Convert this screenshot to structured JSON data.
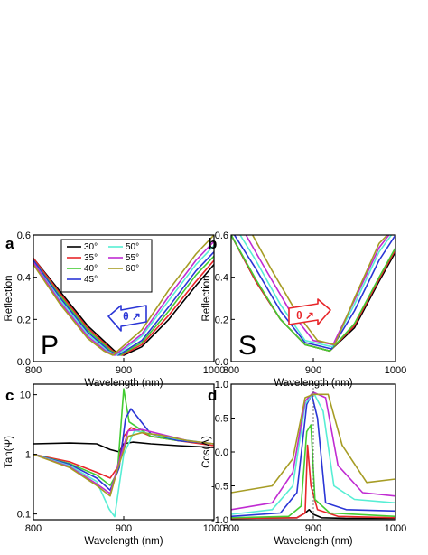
{
  "colors": {
    "30": "#000000",
    "35": "#e8262a",
    "40": "#43cc33",
    "45": "#2a35d6",
    "50": "#57eed4",
    "55": "#c02bd2",
    "60": "#a69c24"
  },
  "legend": [
    "30°",
    "35°",
    "40°",
    "45°",
    "50°",
    "55°",
    "60°"
  ],
  "badges": {
    "p_arrow": "θ ↗",
    "s_arrow": "θ ↗"
  },
  "chart_data": [
    {
      "panel": "a",
      "type": "line",
      "xlabel": "Wavelength (nm)",
      "ylabel": "Reflection",
      "xlim": [
        800,
        1000
      ],
      "ylim": [
        0.0,
        0.6
      ],
      "xticks": [
        "800",
        "900",
        "1000"
      ],
      "yticks": [
        "0.0",
        "0.2",
        "0.4",
        "0.6"
      ],
      "annotation": "P",
      "series": [
        {
          "name": "30°",
          "x": [
            800,
            830,
            860,
            890,
            900,
            920,
            950,
            980,
            1000
          ],
          "y": [
            0.49,
            0.33,
            0.17,
            0.05,
            0.03,
            0.07,
            0.2,
            0.36,
            0.46
          ]
        },
        {
          "name": "35°",
          "x": [
            800,
            830,
            860,
            888,
            898,
            920,
            950,
            980,
            1000
          ],
          "y": [
            0.49,
            0.32,
            0.16,
            0.05,
            0.03,
            0.08,
            0.22,
            0.38,
            0.48
          ]
        },
        {
          "name": "40°",
          "x": [
            800,
            830,
            860,
            886,
            896,
            920,
            950,
            980,
            1000
          ],
          "y": [
            0.48,
            0.31,
            0.15,
            0.05,
            0.03,
            0.09,
            0.24,
            0.41,
            0.5
          ]
        },
        {
          "name": "45°",
          "x": [
            800,
            830,
            860,
            884,
            894,
            920,
            950,
            980,
            1000
          ],
          "y": [
            0.48,
            0.3,
            0.14,
            0.05,
            0.03,
            0.1,
            0.26,
            0.43,
            0.52
          ]
        },
        {
          "name": "50°",
          "x": [
            800,
            830,
            860,
            882,
            892,
            920,
            950,
            980,
            1000
          ],
          "y": [
            0.47,
            0.29,
            0.13,
            0.05,
            0.03,
            0.12,
            0.29,
            0.46,
            0.55
          ]
        },
        {
          "name": "55°",
          "x": [
            800,
            830,
            860,
            880,
            890,
            920,
            950,
            980,
            1000
          ],
          "y": [
            0.47,
            0.28,
            0.12,
            0.05,
            0.03,
            0.13,
            0.31,
            0.48,
            0.57
          ]
        },
        {
          "name": "60°",
          "x": [
            800,
            830,
            860,
            878,
            888,
            920,
            950,
            980,
            1000
          ],
          "y": [
            0.46,
            0.27,
            0.11,
            0.05,
            0.03,
            0.15,
            0.34,
            0.51,
            0.6
          ]
        }
      ]
    },
    {
      "panel": "b",
      "type": "line",
      "xlabel": "Wavelength (nm)",
      "ylabel": "Reflection",
      "xlim": [
        800,
        1000
      ],
      "ylim": [
        0.0,
        0.6
      ],
      "xticks": [
        "800",
        "900",
        "1000"
      ],
      "yticks": [
        "0.0",
        "0.2",
        "0.4",
        "0.6"
      ],
      "annotation": "S",
      "series": [
        {
          "name": "30°",
          "x": [
            800,
            830,
            860,
            890,
            920,
            950,
            980,
            1000
          ],
          "y": [
            0.6,
            0.38,
            0.2,
            0.08,
            0.05,
            0.16,
            0.38,
            0.52
          ]
        },
        {
          "name": "35°",
          "x": [
            800,
            830,
            860,
            890,
            920,
            950,
            980,
            1000
          ],
          "y": [
            0.6,
            0.38,
            0.2,
            0.08,
            0.05,
            0.17,
            0.39,
            0.53
          ]
        },
        {
          "name": "40°",
          "x": [
            800,
            830,
            860,
            890,
            920,
            950,
            980,
            1000
          ],
          "y": [
            0.6,
            0.39,
            0.2,
            0.08,
            0.05,
            0.18,
            0.4,
            0.54
          ]
        },
        {
          "name": "45°",
          "x": [
            804,
            830,
            860,
            890,
            922,
            950,
            980,
            1000
          ],
          "y": [
            0.6,
            0.44,
            0.24,
            0.09,
            0.06,
            0.24,
            0.48,
            0.6
          ]
        },
        {
          "name": "50°",
          "x": [
            811,
            830,
            860,
            890,
            923,
            950,
            980,
            995
          ],
          "y": [
            0.6,
            0.48,
            0.27,
            0.1,
            0.07,
            0.27,
            0.52,
            0.6
          ]
        },
        {
          "name": "55°",
          "x": [
            818,
            840,
            870,
            900,
            924,
            950,
            980,
            992
          ],
          "y": [
            0.6,
            0.45,
            0.25,
            0.1,
            0.08,
            0.29,
            0.54,
            0.6
          ]
        },
        {
          "name": "60°",
          "x": [
            826,
            850,
            880,
            905,
            926,
            950,
            980,
            990
          ],
          "y": [
            0.6,
            0.43,
            0.23,
            0.1,
            0.08,
            0.3,
            0.56,
            0.6
          ]
        }
      ]
    },
    {
      "panel": "c",
      "type": "line",
      "xlabel": "Wavelength (nm)",
      "ylabel": "Tan(Ψ)",
      "xlim": [
        800,
        1000
      ],
      "ylim": [
        0.08,
        15
      ],
      "yscale": "log",
      "xticks": [
        "800",
        "900",
        "1000"
      ],
      "yticks": [
        "0.1",
        "1",
        "10"
      ],
      "series": [
        {
          "name": "30°",
          "x": [
            800,
            840,
            870,
            885,
            895,
            900,
            910,
            930,
            960,
            1000
          ],
          "y": [
            1.5,
            1.55,
            1.5,
            1.2,
            1.1,
            1.5,
            1.6,
            1.5,
            1.4,
            1.3
          ]
        },
        {
          "name": "35°",
          "x": [
            800,
            840,
            870,
            885,
            893,
            900,
            908,
            930,
            960,
            1000
          ],
          "y": [
            1.0,
            0.75,
            0.5,
            0.4,
            0.6,
            2.0,
            2.8,
            2.0,
            1.7,
            1.4
          ]
        },
        {
          "name": "40°",
          "x": [
            800,
            840,
            870,
            885,
            893,
            900,
            906,
            930,
            960,
            1000
          ],
          "y": [
            1.0,
            0.7,
            0.45,
            0.3,
            0.5,
            12.5,
            3.5,
            2.0,
            1.7,
            1.5
          ]
        },
        {
          "name": "45°",
          "x": [
            800,
            840,
            870,
            885,
            895,
            902,
            908,
            930,
            960,
            1000
          ],
          "y": [
            1.0,
            0.68,
            0.4,
            0.25,
            0.6,
            4.0,
            5.8,
            2.2,
            1.7,
            1.5
          ]
        },
        {
          "name": "50°",
          "x": [
            800,
            840,
            870,
            884,
            890,
            900,
            912,
            930,
            960,
            1000
          ],
          "y": [
            1.0,
            0.65,
            0.35,
            0.12,
            0.09,
            1.0,
            2.5,
            2.2,
            1.8,
            1.5
          ]
        },
        {
          "name": "55°",
          "x": [
            800,
            840,
            870,
            885,
            893,
            905,
            920,
            940,
            970,
            1000
          ],
          "y": [
            1.0,
            0.62,
            0.32,
            0.22,
            0.6,
            2.5,
            2.6,
            2.2,
            1.7,
            1.5
          ]
        },
        {
          "name": "60°",
          "x": [
            800,
            840,
            870,
            885,
            893,
            905,
            920,
            940,
            970,
            1000
          ],
          "y": [
            1.0,
            0.6,
            0.3,
            0.2,
            0.55,
            2.0,
            2.3,
            2.1,
            1.7,
            1.5
          ]
        }
      ]
    },
    {
      "panel": "d",
      "type": "line",
      "xlabel": "Wavelength (nm)",
      "ylabel": "Cos(Δ)",
      "xlim": [
        800,
        1000
      ],
      "ylim": [
        -1.0,
        1.0
      ],
      "xticks": [
        "800",
        "900",
        "1000"
      ],
      "yticks": [
        "-1.0",
        "-0.5",
        "0.0",
        "0.5",
        "1.0"
      ],
      "series": [
        {
          "name": "30°",
          "x": [
            800,
            880,
            890,
            895,
            900,
            910,
            940,
            1000
          ],
          "y": [
            -0.98,
            -0.97,
            -0.9,
            -0.85,
            -0.92,
            -0.97,
            -0.98,
            -0.98
          ]
        },
        {
          "name": "35°",
          "x": [
            800,
            880,
            890,
            893,
            897,
            905,
            930,
            1000
          ],
          "y": [
            -0.98,
            -0.97,
            -0.9,
            0.1,
            -0.5,
            -0.85,
            -0.95,
            -0.97
          ]
        },
        {
          "name": "40°",
          "x": [
            800,
            870,
            885,
            892,
            897,
            902,
            920,
            1000
          ],
          "y": [
            -0.97,
            -0.95,
            -0.8,
            0.3,
            0.4,
            -0.7,
            -0.9,
            -0.95
          ]
        },
        {
          "name": "45°",
          "x": [
            800,
            860,
            880,
            892,
            898,
            905,
            915,
            940,
            1000
          ],
          "y": [
            -0.95,
            -0.9,
            -0.6,
            0.7,
            0.85,
            0.5,
            -0.75,
            -0.85,
            -0.87
          ]
        },
        {
          "name": "50°",
          "x": [
            800,
            850,
            875,
            890,
            900,
            912,
            925,
            950,
            1000
          ],
          "y": [
            -0.92,
            -0.85,
            -0.5,
            0.7,
            0.88,
            0.6,
            -0.5,
            -0.7,
            -0.75
          ]
        },
        {
          "name": "55°",
          "x": [
            800,
            850,
            875,
            890,
            900,
            915,
            930,
            960,
            1000
          ],
          "y": [
            -0.85,
            -0.75,
            -0.3,
            0.75,
            0.88,
            0.8,
            -0.2,
            -0.6,
            -0.65
          ]
        },
        {
          "name": "60°",
          "x": [
            800,
            850,
            875,
            890,
            900,
            918,
            935,
            965,
            1000
          ],
          "y": [
            -0.6,
            -0.5,
            -0.1,
            0.8,
            0.85,
            0.85,
            0.1,
            -0.45,
            -0.4
          ]
        }
      ]
    }
  ]
}
